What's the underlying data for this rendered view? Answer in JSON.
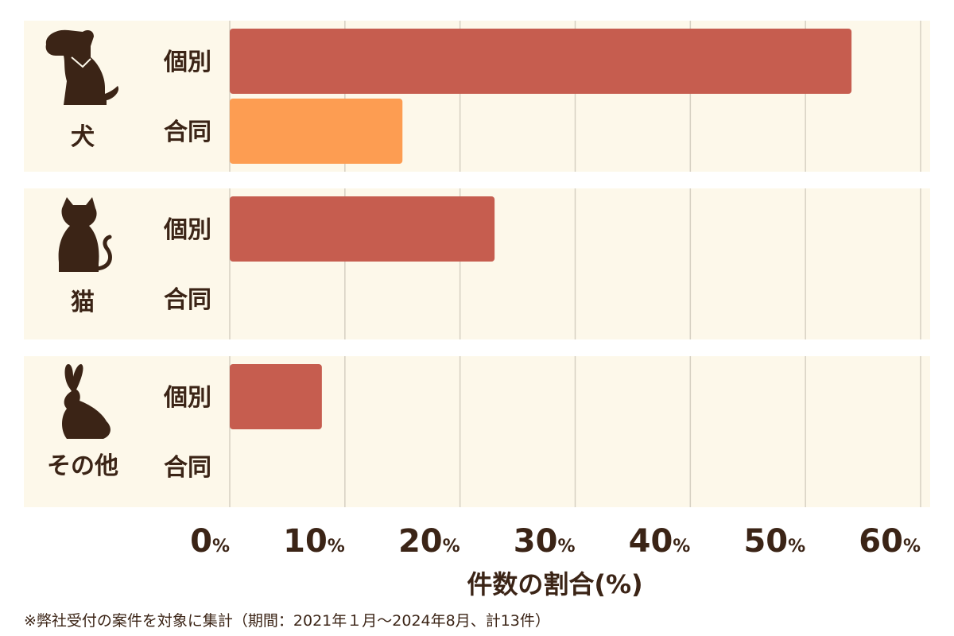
{
  "chart_data": {
    "type": "bar",
    "orientation": "horizontal",
    "groups": [
      {
        "label": "犬",
        "icon": "dog-icon",
        "rows": [
          {
            "label": "個別",
            "value": 54
          },
          {
            "label": "合同",
            "value": 15
          }
        ]
      },
      {
        "label": "猫",
        "icon": "cat-icon",
        "rows": [
          {
            "label": "個別",
            "value": 23
          },
          {
            "label": "合同",
            "value": 0
          }
        ]
      },
      {
        "label": "その他",
        "icon": "rabbit-icon",
        "rows": [
          {
            "label": "個別",
            "value": 8
          },
          {
            "label": "合同",
            "value": 0
          }
        ]
      }
    ],
    "xlim": [
      0,
      60
    ],
    "xticks": [
      0,
      10,
      20,
      30,
      40,
      50,
      60
    ],
    "tick_unit": "%",
    "xlabel": "件数の割合(%)",
    "grid": true,
    "colors": {
      "個別": "#c65d4f",
      "合同": "#fd9d52",
      "panel_bg": "#fdf8ea",
      "grid": "#d6d0c2",
      "text": "#3b2416"
    }
  },
  "footnote": "※弊社受付の案件を対象に集計（期間：2021年１月〜2024年8月、計13件）"
}
